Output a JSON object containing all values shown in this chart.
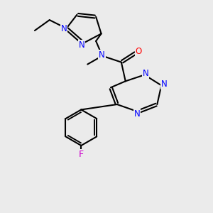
{
  "background_color": "#ebebeb",
  "atom_colors": {
    "N": "#0000ff",
    "O": "#ff0000",
    "F": "#cc00cc",
    "C": "#000000"
  },
  "bond_color": "#000000",
  "bond_width": 1.5,
  "figsize": [
    3.0,
    3.0
  ],
  "dpi": 100,
  "font_size": 8.5
}
